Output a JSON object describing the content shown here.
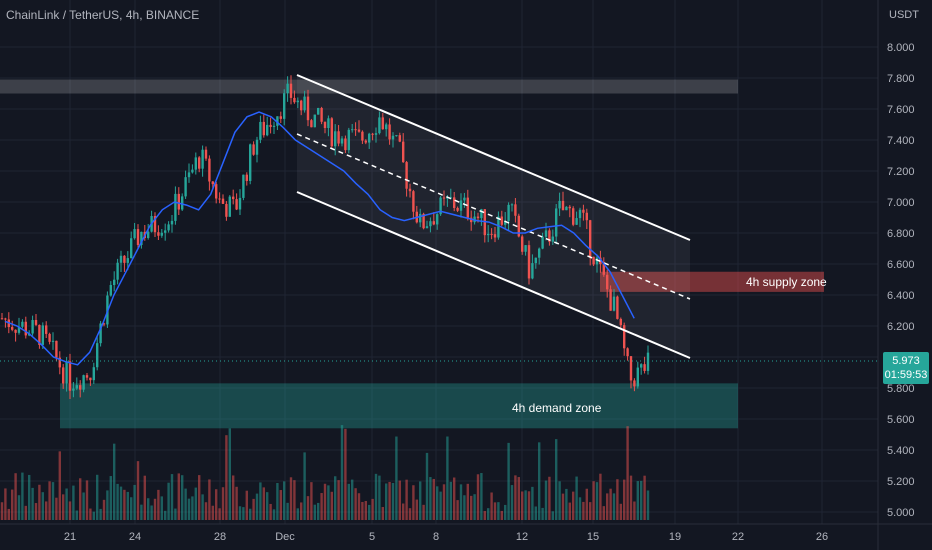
{
  "header": {
    "title": "ChainLink / TetherUS, 4h, BINANCE"
  },
  "last_price": {
    "value": "5.973",
    "countdown": "01:59:53"
  },
  "annotations": {
    "supply_zone": "4h supply zone",
    "demand_zone": "4h demand zone"
  },
  "colors": {
    "background": "#131722",
    "up": "#26a69a",
    "down": "#ef5350",
    "ma": "#2962ff",
    "channel": "#ffffff",
    "supply": "#ef5350",
    "demand": "#26a69a"
  },
  "chart_data": {
    "type": "candlestick",
    "symbol": "LINK/USDT",
    "timeframe": "4h",
    "ylabel": "USDT",
    "ylim": [
      4.94,
      8.2
    ],
    "y_ticks": [
      "8.000",
      "7.800",
      "7.600",
      "7.400",
      "7.200",
      "7.000",
      "6.800",
      "6.600",
      "6.400",
      "6.200",
      "6.000",
      "5.800",
      "5.600",
      "5.400",
      "5.200",
      "5.000"
    ],
    "x_ticks": [
      "21",
      "24",
      "28",
      "Dec",
      "5",
      "8",
      "12",
      "15",
      "19",
      "22",
      "26"
    ],
    "ma_line": [
      6.23,
      6.2,
      6.15,
      6.08,
      6.0,
      5.97,
      5.95,
      6.03,
      6.2,
      6.4,
      6.55,
      6.7,
      6.85,
      6.95,
      7.0,
      6.98,
      6.95,
      7.05,
      7.25,
      7.45,
      7.55,
      7.58,
      7.55,
      7.48,
      7.4,
      7.35,
      7.3,
      7.25,
      7.2,
      7.12,
      7.05,
      6.95,
      6.9,
      6.88,
      6.9,
      6.92,
      6.94,
      6.92,
      6.9,
      6.88,
      6.87,
      6.84,
      6.8,
      6.8,
      6.83,
      6.84,
      6.85,
      6.8,
      6.72,
      6.65,
      6.55,
      6.4,
      6.25
    ],
    "zones": [
      {
        "name": "resistance",
        "low": 7.7,
        "high": 7.79
      },
      {
        "name": "4h supply zone",
        "low": 6.42,
        "high": 6.55
      },
      {
        "name": "4h demand zone",
        "low": 5.54,
        "high": 5.83
      }
    ],
    "channel": {
      "upper": [
        [
          7.82
        ],
        [
          6.75
        ]
      ],
      "lower": [
        [
          7.08
        ],
        [
          6.04
        ]
      ],
      "mid": [
        [
          7.45
        ],
        [
          6.38
        ]
      ]
    }
  }
}
